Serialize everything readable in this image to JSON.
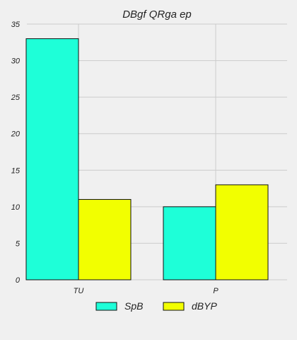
{
  "chart_data": {
    "type": "bar",
    "title": "DBgf QRga ep",
    "xlabel": "",
    "ylabel": "",
    "categories": [
      "TU",
      "P"
    ],
    "series": [
      {
        "name": "SpB",
        "values": [
          33,
          10
        ],
        "color": "#1effd8"
      },
      {
        "name": "dBYP",
        "values": [
          11,
          13
        ],
        "color": "#f2ff00"
      }
    ],
    "ylim": [
      0,
      35
    ],
    "yticks": [
      0,
      5,
      10,
      15,
      20,
      25,
      30,
      35
    ],
    "grid": true,
    "legend_position": "bottom"
  }
}
